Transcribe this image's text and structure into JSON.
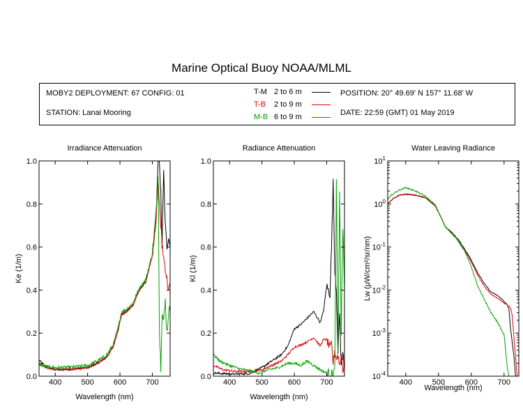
{
  "title": "Marine Optical Buoy NOAA/MLML",
  "info": {
    "deployment": "MOBY2 DEPLOYMENT: 67 CONFIG: 01",
    "station": "STATION: Lanai Mooring",
    "position": "POSITION: 20° 49.69' N   157° 11.68' W",
    "date": "DATE: 22:59 (GMT) 01 May 2019"
  },
  "legend": [
    {
      "code": "T-M",
      "range": "2 to 6  m",
      "color": "#000000"
    },
    {
      "code": "T-B",
      "range": "2 to 9  m",
      "color": "#dd0000"
    },
    {
      "code": "M-B",
      "range": "6 to 9  m",
      "color": "#00a000"
    }
  ],
  "chart_data": [
    {
      "type": "line",
      "title": "Irradiance Attenuation",
      "xlabel": "Wavelength (nm)",
      "ylabel": "Ke  (1/m)",
      "xlim": [
        350,
        755
      ],
      "ylim": [
        0,
        1.0
      ],
      "xticks": [
        400,
        500,
        600,
        700
      ],
      "yticks": [
        0.0,
        0.2,
        0.4,
        0.6,
        0.8,
        1.0
      ],
      "ytick_labels": [
        "0.0",
        "0.2",
        "0.4",
        "0.6",
        "0.8",
        "1.0"
      ],
      "yscale": "linear",
      "series": [
        {
          "name": "T-M",
          "color": "#000000",
          "noise": 0.01,
          "x": [
            350,
            370,
            400,
            450,
            500,
            530,
            560,
            580,
            595,
            605,
            620,
            640,
            660,
            680,
            700,
            712,
            718,
            722,
            726,
            730,
            735,
            740,
            745,
            750,
            755
          ],
          "y": [
            0.075,
            0.045,
            0.03,
            0.032,
            0.04,
            0.06,
            0.09,
            0.14,
            0.22,
            0.285,
            0.3,
            0.33,
            0.4,
            0.44,
            0.56,
            0.75,
            1.0,
            1.0,
            0.85,
            0.6,
            0.95,
            0.7,
            0.6,
            0.65,
            0.6
          ]
        },
        {
          "name": "T-B",
          "color": "#dd0000",
          "noise": 0.01,
          "x": [
            350,
            370,
            400,
            450,
            500,
            530,
            560,
            580,
            595,
            605,
            620,
            640,
            660,
            680,
            700,
            712,
            718,
            722,
            726,
            730,
            735,
            740,
            745,
            750,
            755
          ],
          "y": [
            0.065,
            0.04,
            0.03,
            0.032,
            0.04,
            0.06,
            0.09,
            0.14,
            0.22,
            0.285,
            0.3,
            0.33,
            0.4,
            0.44,
            0.56,
            0.74,
            0.9,
            0.8,
            0.7,
            0.62,
            0.55,
            0.5,
            0.45,
            0.4,
            0.42
          ]
        },
        {
          "name": "M-B",
          "color": "#00a000",
          "noise": 0.015,
          "x": [
            350,
            370,
            400,
            450,
            500,
            530,
            560,
            580,
            595,
            605,
            620,
            640,
            660,
            680,
            700,
            712,
            718,
            722,
            726,
            730,
            735,
            740,
            745,
            750,
            755
          ],
          "y": [
            0.055,
            0.045,
            0.04,
            0.042,
            0.05,
            0.07,
            0.1,
            0.15,
            0.23,
            0.3,
            0.31,
            0.34,
            0.41,
            0.45,
            0.57,
            0.76,
            0.95,
            0.2,
            0.05,
            0.3,
            0.25,
            0.35,
            0.2,
            0.3,
            0.3
          ]
        }
      ]
    },
    {
      "type": "line",
      "title": "Radiance Attenuation",
      "xlabel": "Wavelength (nm)",
      "ylabel": "Kl  (1/m)",
      "xlim": [
        350,
        755
      ],
      "ylim": [
        0,
        1.0
      ],
      "xticks": [
        400,
        500,
        600,
        700
      ],
      "yticks": [
        0.0,
        0.2,
        0.4,
        0.6,
        0.8,
        1.0
      ],
      "ytick_labels": [
        "0.0",
        "0.2",
        "0.4",
        "0.6",
        "0.8",
        "1.0"
      ],
      "yscale": "linear",
      "series": [
        {
          "name": "T-M",
          "color": "#000000",
          "noise": 0.01,
          "x": [
            350,
            380,
            420,
            460,
            500,
            530,
            560,
            580,
            600,
            620,
            640,
            660,
            680,
            690,
            700,
            710,
            715,
            720,
            725,
            730,
            735,
            740,
            745,
            750,
            755
          ],
          "y": [
            0.015,
            0.012,
            0.01,
            0.012,
            0.04,
            0.07,
            0.1,
            0.14,
            0.22,
            0.24,
            0.27,
            0.3,
            0.25,
            0.3,
            0.42,
            0.38,
            0.6,
            0.9,
            0.5,
            0.4,
            0.1,
            0.3,
            0.05,
            0.1,
            0.05
          ]
        },
        {
          "name": "T-B",
          "color": "#dd0000",
          "noise": 0.01,
          "x": [
            350,
            380,
            420,
            460,
            500,
            530,
            560,
            580,
            600,
            620,
            640,
            660,
            680,
            690,
            700,
            710,
            715,
            720,
            725,
            730,
            735,
            740,
            745,
            750,
            755
          ],
          "y": [
            0.05,
            0.03,
            0.022,
            0.022,
            0.03,
            0.05,
            0.07,
            0.1,
            0.135,
            0.145,
            0.16,
            0.18,
            0.14,
            0.17,
            0.17,
            0.13,
            0.15,
            0.06,
            0.12,
            0.08,
            0.1,
            0.05,
            0.1,
            0.02,
            0.08
          ]
        },
        {
          "name": "M-B",
          "color": "#00a000",
          "noise": 0.012,
          "x": [
            350,
            370,
            400,
            430,
            460,
            490,
            520,
            550,
            580,
            600,
            620,
            640,
            660,
            680,
            700,
            710,
            720,
            725,
            730,
            735,
            740,
            745,
            750,
            755
          ],
          "y": [
            0.1,
            0.07,
            0.05,
            0.035,
            0.025,
            0.015,
            0.03,
            0.04,
            0.06,
            0.06,
            0.05,
            0.07,
            0.05,
            0.03,
            0.015,
            0.01,
            0.01,
            0.03,
            0.9,
            0.1,
            0.85,
            0.2,
            0.7,
            0.4
          ]
        }
      ]
    },
    {
      "type": "line",
      "title": "Water Leaving Radiance",
      "xlabel": "Wavelength (nm)",
      "ylabel": "Lw  (μW/cm²/sr/nm)",
      "xlim": [
        345,
        745
      ],
      "ylim": [
        0.0001,
        10
      ],
      "yscale": "log",
      "xticks": [
        400,
        500,
        600,
        700
      ],
      "yticks": [
        0.0001,
        0.001,
        0.01,
        0.1,
        1,
        10
      ],
      "ytick_labels": [
        {
          "base": "10",
          "exp": "-4"
        },
        {
          "base": "10",
          "exp": "-3"
        },
        {
          "base": "10",
          "exp": "-2"
        },
        {
          "base": "10",
          "exp": "-1"
        },
        {
          "base": "10",
          "exp": "0"
        },
        {
          "base": "10",
          "exp": "1"
        }
      ],
      "series": [
        {
          "name": "T-M",
          "color": "#000000",
          "noise": 0.03,
          "x": [
            345,
            360,
            380,
            400,
            430,
            460,
            490,
            510,
            520,
            540,
            560,
            580,
            600,
            620,
            640,
            660,
            680,
            700,
            710,
            715,
            720,
            725,
            730,
            735
          ],
          "y": [
            1.0,
            1.3,
            1.6,
            1.7,
            1.6,
            1.4,
            0.9,
            0.45,
            0.3,
            0.22,
            0.15,
            0.09,
            0.05,
            0.025,
            0.014,
            0.009,
            0.0075,
            0.0055,
            0.0045,
            0.0035,
            0.0012,
            0.0006,
            0.0003,
            0.0001
          ]
        },
        {
          "name": "T-B",
          "color": "#dd0000",
          "noise": 0.02,
          "x": [
            345,
            360,
            380,
            400,
            430,
            460,
            490,
            510,
            520,
            540,
            560,
            580,
            600,
            620,
            640,
            660,
            680,
            700,
            710,
            715,
            720,
            725,
            730,
            735,
            740
          ],
          "y": [
            1.0,
            1.3,
            1.6,
            1.7,
            1.6,
            1.4,
            0.9,
            0.45,
            0.3,
            0.21,
            0.14,
            0.085,
            0.045,
            0.022,
            0.012,
            0.008,
            0.0065,
            0.005,
            0.0045,
            0.0042,
            0.0038,
            0.0025,
            0.0008,
            0.0003,
            0.0001
          ]
        },
        {
          "name": "M-B",
          "color": "#00a000",
          "noise": 0.04,
          "x": [
            345,
            360,
            380,
            400,
            430,
            460,
            490,
            510,
            520,
            540,
            560,
            580,
            600,
            620,
            640,
            660,
            680,
            700,
            705,
            710,
            715
          ],
          "y": [
            1.3,
            1.7,
            2.1,
            2.4,
            2.0,
            1.5,
            0.95,
            0.45,
            0.3,
            0.21,
            0.14,
            0.08,
            0.035,
            0.012,
            0.006,
            0.003,
            0.0018,
            0.0009,
            0.0004,
            0.00015,
            0.0001
          ]
        }
      ]
    }
  ]
}
